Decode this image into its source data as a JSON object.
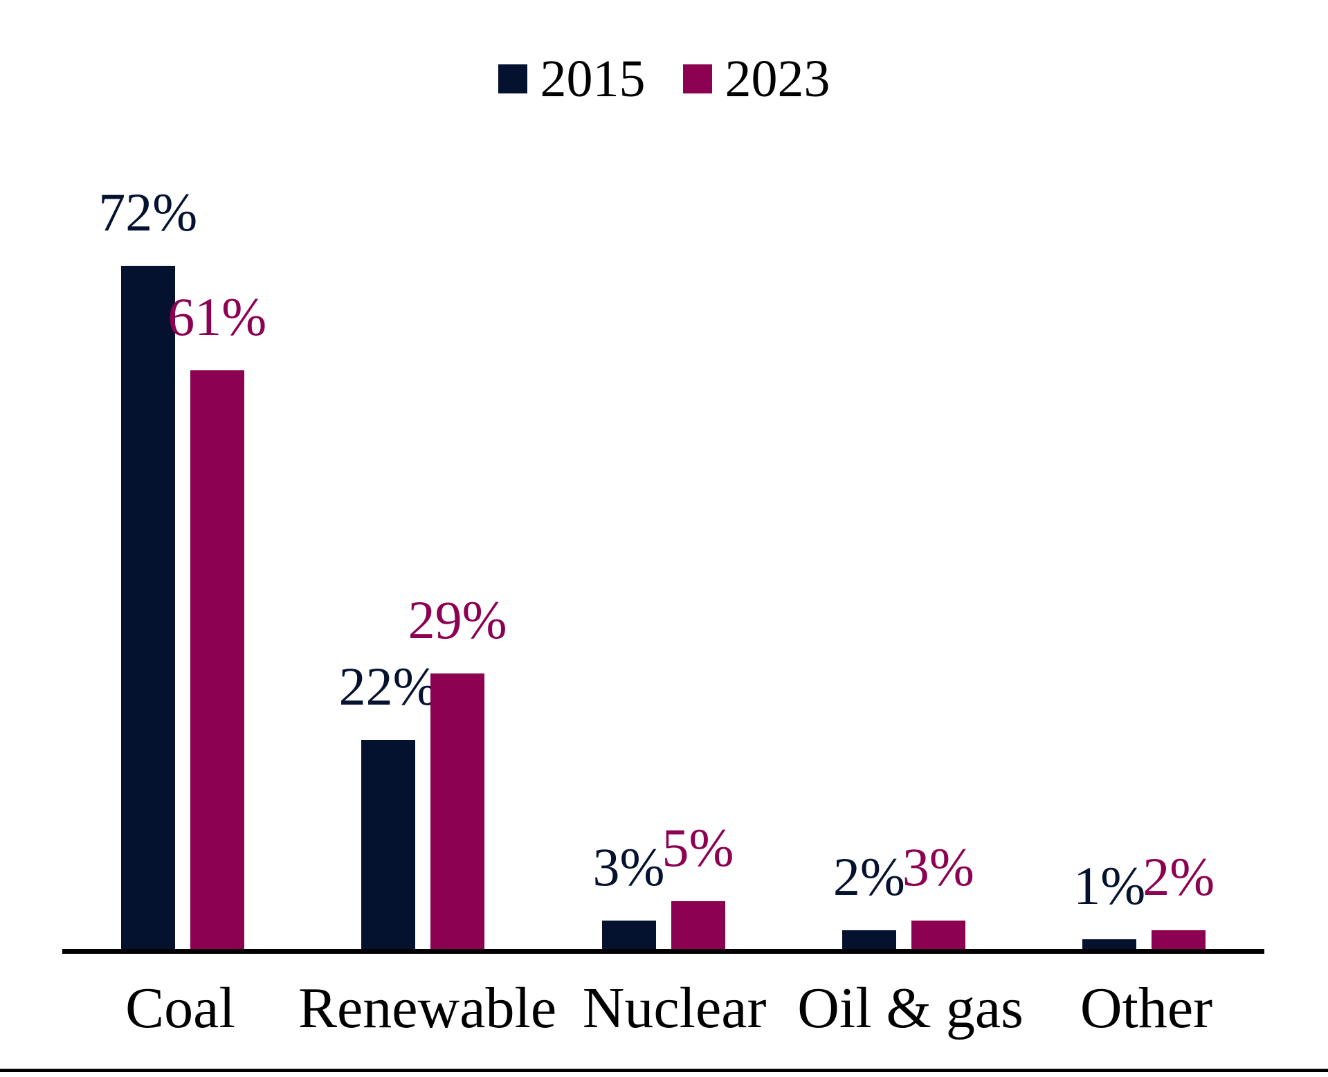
{
  "chart_data": {
    "type": "bar",
    "categories": [
      "Coal",
      "Renewable",
      "Nuclear",
      "Oil & gas",
      "Other"
    ],
    "series": [
      {
        "name": "2015",
        "color": "#041230",
        "values": [
          72,
          22,
          3,
          2,
          1
        ]
      },
      {
        "name": "2023",
        "color": "#8C0152",
        "values": [
          61,
          29,
          5,
          3,
          2
        ]
      }
    ],
    "value_suffix": "%",
    "title": "",
    "xlabel": "",
    "ylabel": "",
    "ylim": [
      0,
      100
    ],
    "grid": false,
    "y_axis_visible": false,
    "legend_position": "top-center",
    "data_labels": "above-bars"
  },
  "colors": {
    "background": "#FFFFFF",
    "axis_line": "#000000",
    "bottom_rule": "#000000",
    "legend_text": "#000000",
    "category_text": "#000000",
    "series_2015": "#041230",
    "series_2023": "#8C0152"
  }
}
